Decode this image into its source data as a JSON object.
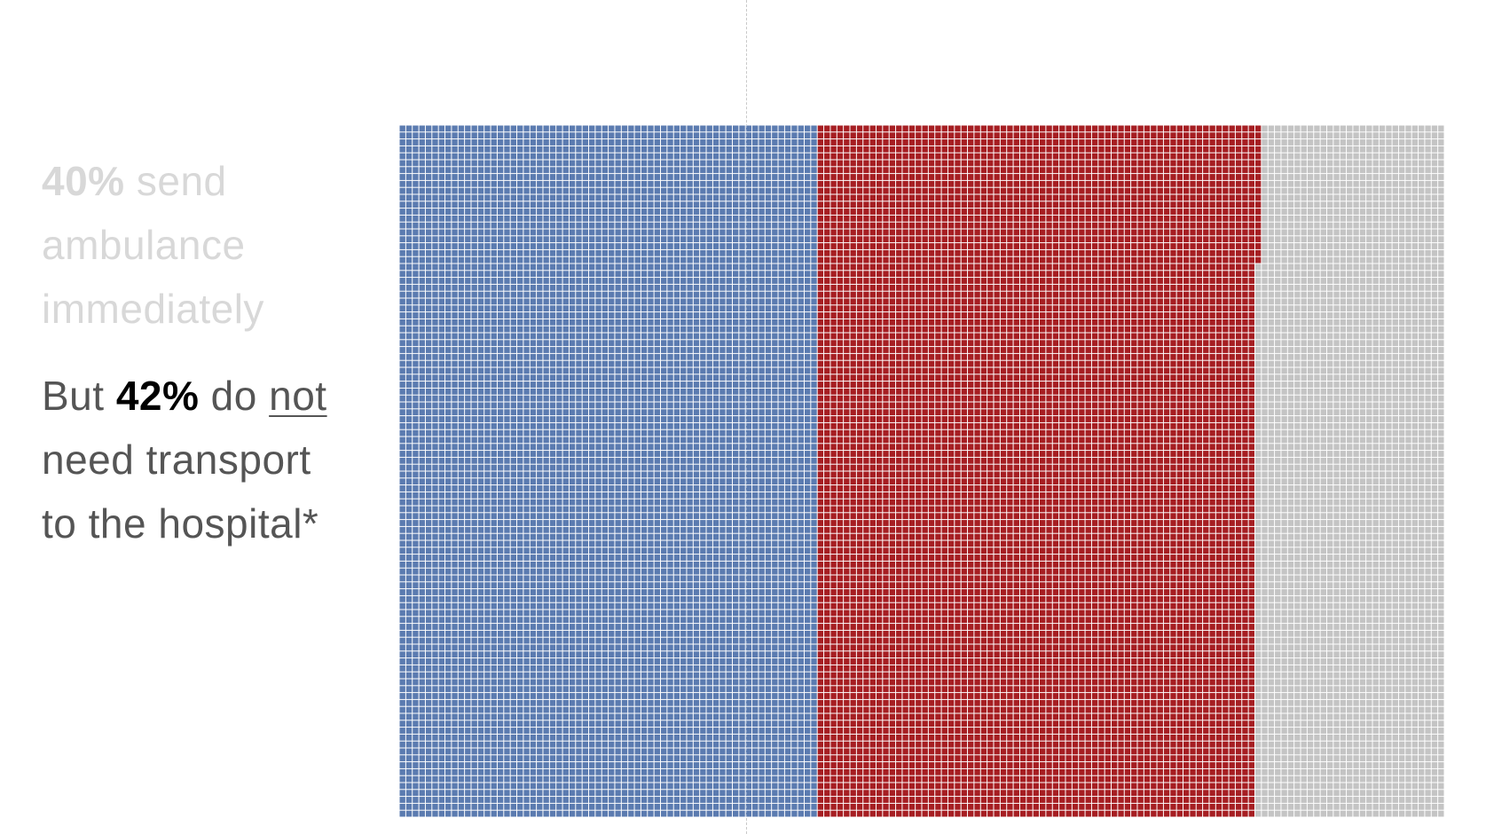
{
  "captions": {
    "first": {
      "pct": "40%",
      "line1_rest": " send",
      "line2": "ambulance",
      "line3": "immediately"
    },
    "second": {
      "prefix": "But ",
      "pct": "42%",
      "mid": " do ",
      "underlined": "not",
      "line2": "need transport",
      "line3": "to the hospital*"
    }
  },
  "chart_data": {
    "type": "waffle",
    "unit_cells": {
      "columns": 160,
      "rows": 100
    },
    "series": [
      {
        "label": "send ambulance immediately",
        "percent": 40,
        "color": "#5b7bb0"
      },
      {
        "label": "do not need transport to the hospital",
        "percent": 42,
        "color": "#a61e22"
      },
      {
        "percent": 18,
        "color": "#c4c4c4"
      }
    ],
    "grid_line_color": "#ffffff"
  }
}
